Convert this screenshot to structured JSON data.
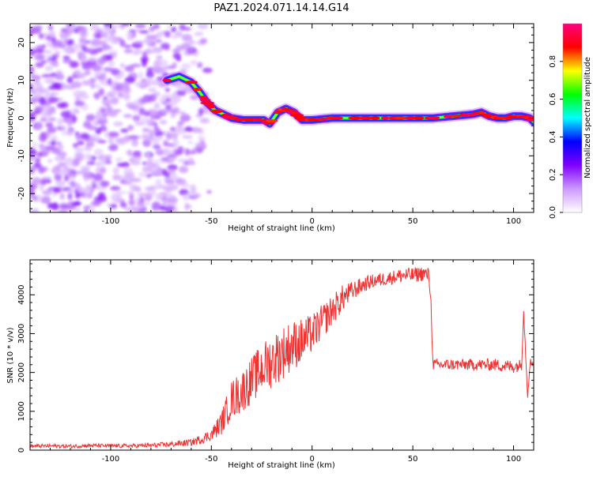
{
  "title": "PAZ1.2024.071.14.14.G14",
  "chart_data": [
    {
      "type": "heatmap",
      "xlabel": "Height of straight line (km)",
      "ylabel": "Frequency (Hz)",
      "xlim": [
        -140,
        110
      ],
      "ylim": [
        -25,
        25
      ],
      "xticks": [
        -100,
        -50,
        0,
        50,
        100
      ],
      "yticks": [
        -20,
        -10,
        0,
        10,
        20
      ],
      "colorbar": {
        "label": "Normalized spectral amplitude",
        "range": [
          0,
          1
        ],
        "ticks": [
          "0.0",
          "0.2",
          "0.4",
          "0.6",
          "0.8"
        ],
        "colors": [
          "#ffffff",
          "#cc99ff",
          "#7f00ff",
          "#0000ff",
          "#00ffff",
          "#00ff00",
          "#ffff00",
          "#ff0000",
          "#ff0080"
        ]
      },
      "ridge": {
        "x": [
          -72,
          -66,
          -60,
          -56,
          -52,
          -48,
          -44,
          -40,
          -34,
          -28,
          -24,
          -21,
          -17,
          -13,
          -9,
          -5,
          0,
          10,
          20,
          30,
          40,
          50,
          60,
          70,
          80,
          84,
          88,
          92,
          96,
          100,
          104,
          108,
          110
        ],
        "y": [
          10,
          11,
          9.5,
          7,
          4,
          2,
          1,
          0,
          -0.5,
          -0.5,
          -0.5,
          -1.5,
          1.5,
          2.5,
          1.5,
          -0.5,
          -0.5,
          0,
          0,
          0,
          0,
          0,
          0,
          0.5,
          1,
          1.5,
          0.5,
          0,
          0,
          0.5,
          0.5,
          0,
          -1
        ]
      },
      "noise_region": {
        "x": [
          -140,
          -50
        ]
      }
    },
    {
      "type": "line",
      "xlabel": "Height of straight line (km)",
      "ylabel": "SNR (10 * v/v)",
      "xlim": [
        -140,
        110
      ],
      "ylim": [
        0,
        4900
      ],
      "xticks": [
        -100,
        -50,
        0,
        50,
        100
      ],
      "yticks": [
        0,
        1000,
        2000,
        3000,
        4000
      ],
      "series": [
        {
          "color": "#ee3333",
          "x": [
            -140,
            -130,
            -120,
            -110,
            -100,
            -90,
            -80,
            -70,
            -60,
            -55,
            -50,
            -45,
            -40,
            -35,
            -30,
            -25,
            -20,
            -15,
            -10,
            -5,
            0,
            5,
            10,
            15,
            20,
            25,
            30,
            35,
            40,
            45,
            50,
            55,
            58,
            59,
            60,
            70,
            80,
            90,
            100,
            104,
            105,
            107,
            108,
            110
          ],
          "y": [
            100,
            110,
            100,
            120,
            110,
            110,
            120,
            150,
            200,
            280,
            400,
            700,
            1300,
            1500,
            1800,
            2100,
            2300,
            2500,
            2700,
            2800,
            3000,
            3300,
            3600,
            3900,
            4100,
            4250,
            4350,
            4400,
            4450,
            4500,
            4500,
            4550,
            4500,
            3800,
            2200,
            2200,
            2200,
            2200,
            2150,
            2200,
            3600,
            1400,
            2200,
            2300
          ],
          "noise_amp": [
            50,
            50,
            50,
            50,
            50,
            50,
            60,
            70,
            90,
            120,
            160,
            300,
            500,
            550,
            600,
            650,
            700,
            700,
            650,
            600,
            500,
            450,
            400,
            350,
            250,
            200,
            180,
            180,
            180,
            200,
            200,
            200,
            200,
            100,
            150,
            150,
            150,
            160,
            170,
            150,
            100,
            100,
            150,
            150
          ]
        }
      ]
    }
  ]
}
